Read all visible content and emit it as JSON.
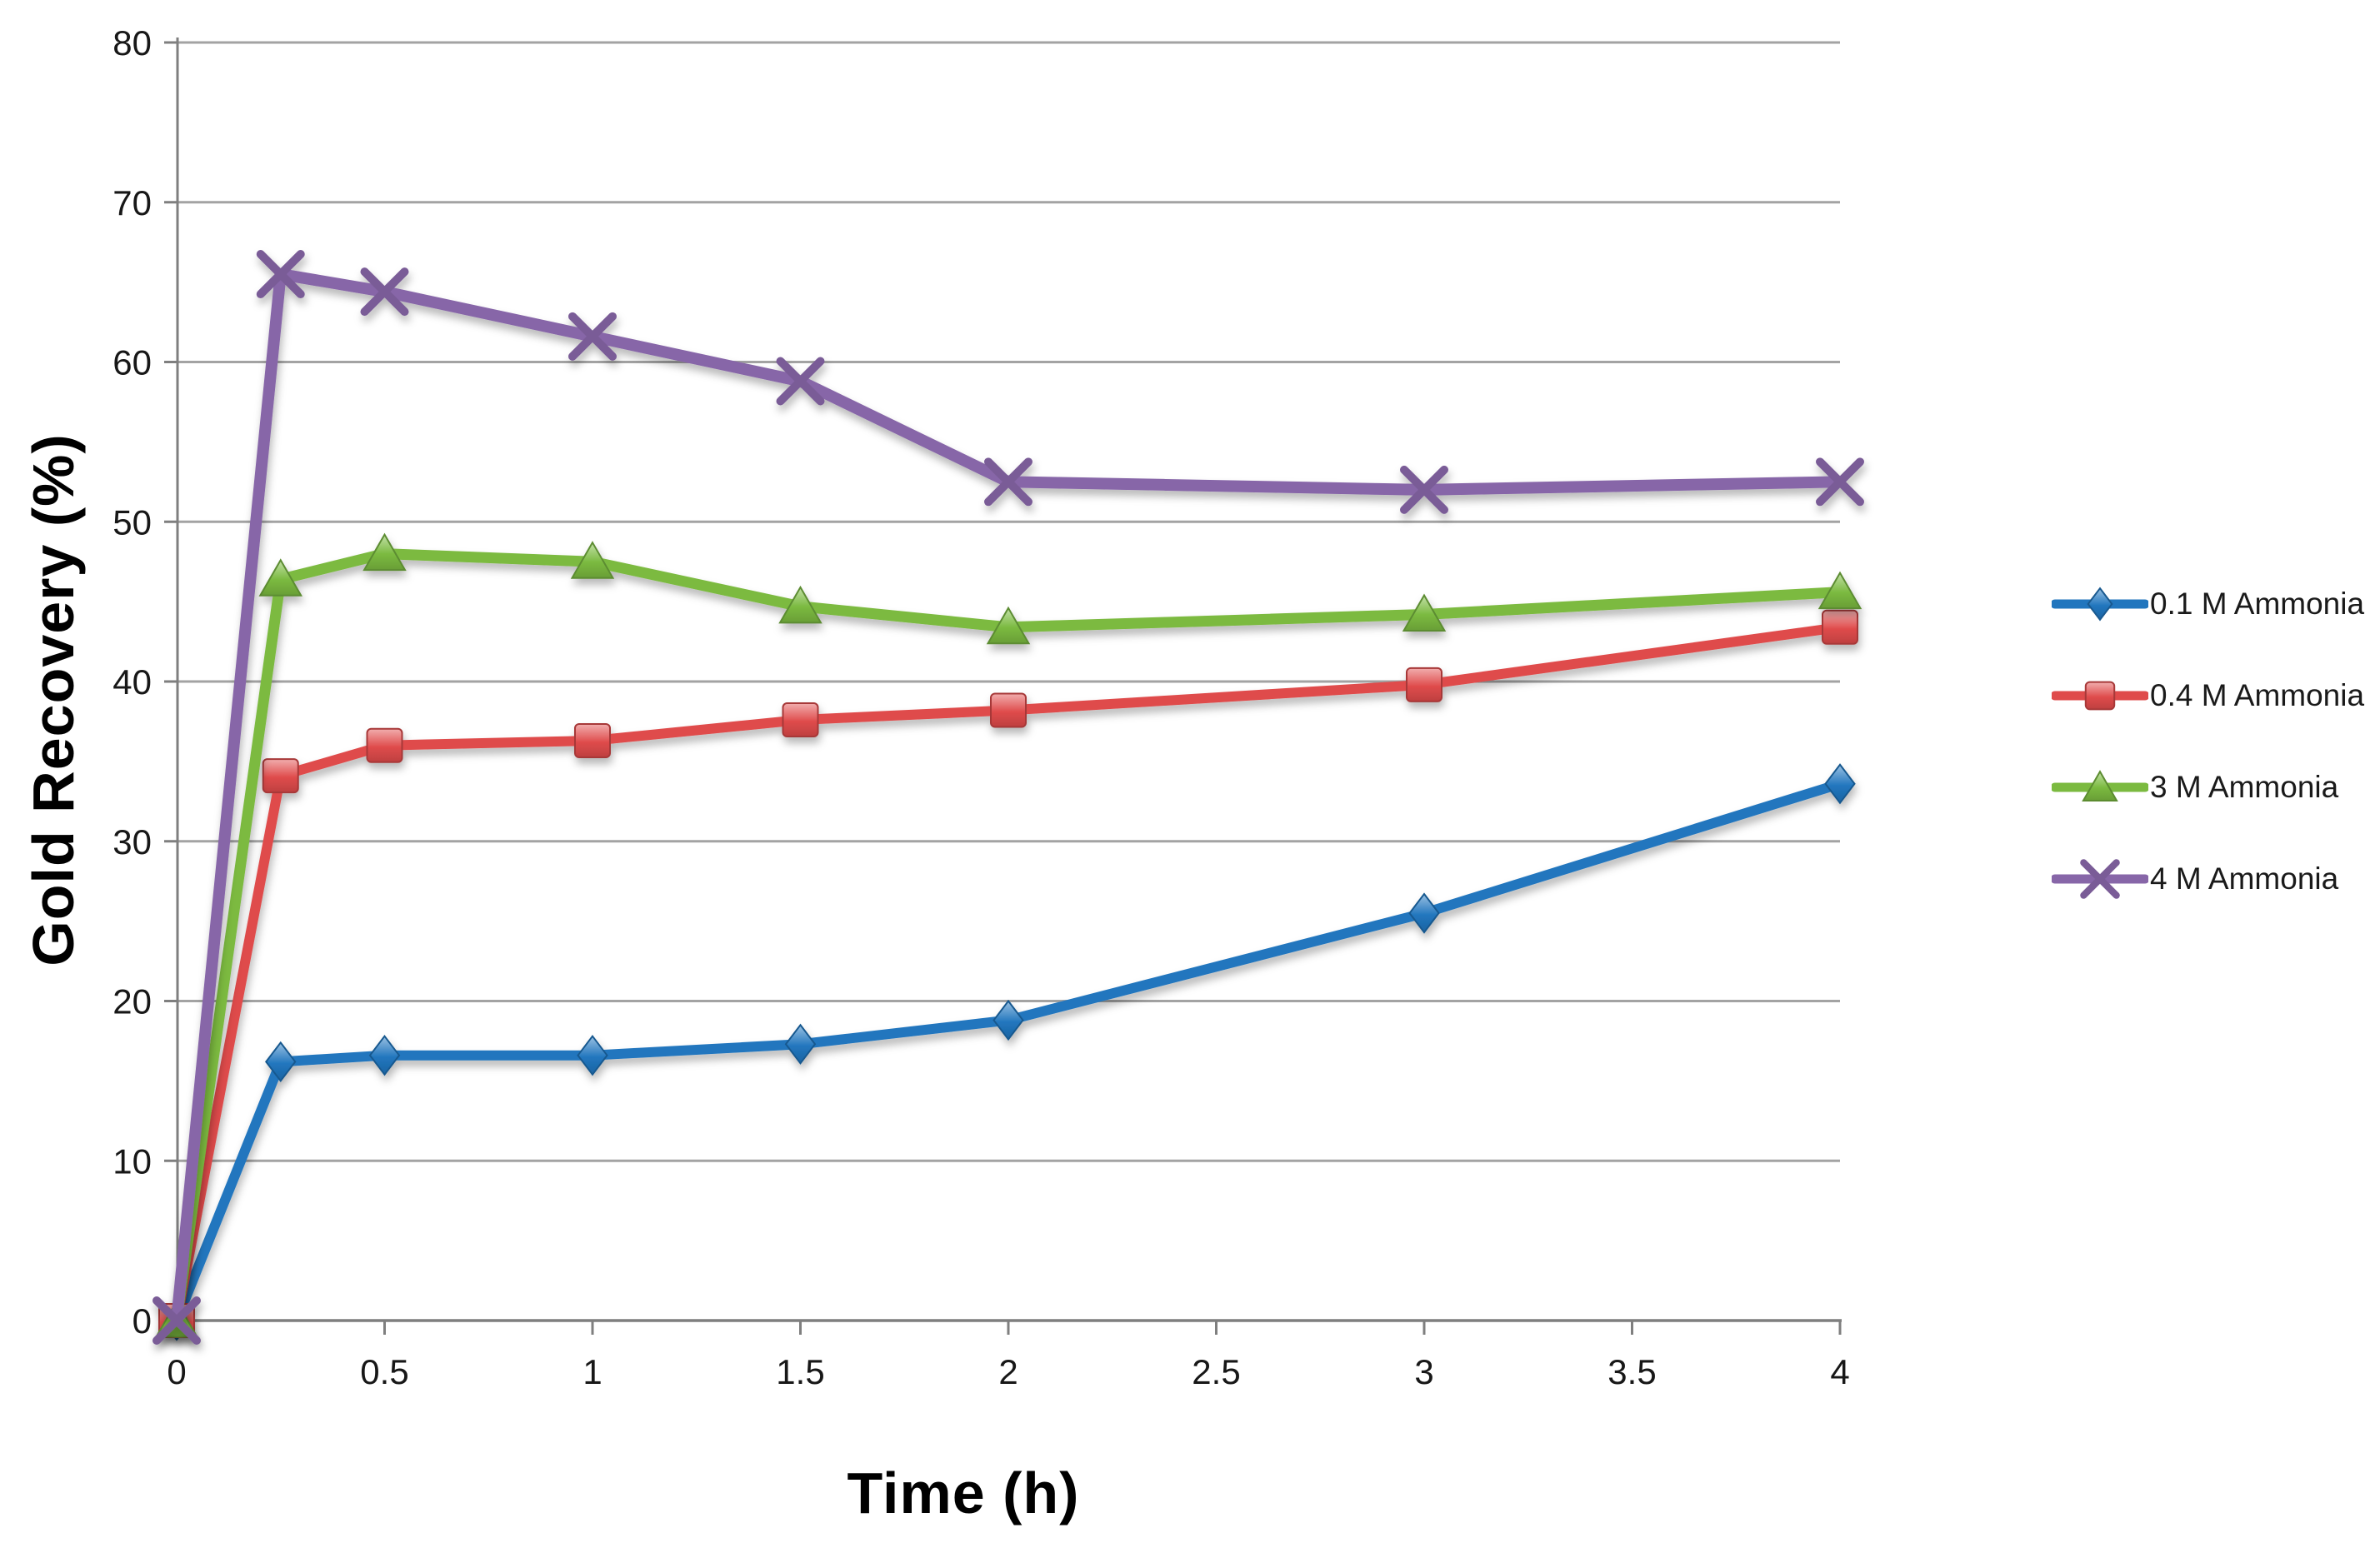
{
  "figure": {
    "background": "#ffffff",
    "gridline_color": "#a3a3a3",
    "axis_color": "#7f7f7f",
    "tick_text_color": "#171717"
  },
  "chart_data": {
    "type": "line",
    "title": "",
    "xlabel": "Time (h)",
    "ylabel": "Gold Recovery (%)",
    "x": [
      0,
      0.25,
      0.5,
      1,
      1.5,
      2,
      3,
      4
    ],
    "series": [
      {
        "name": "0.1 M Ammonia",
        "marker": "diamond",
        "color": "#2176be",
        "line_width": 12,
        "values": [
          0,
          16.2,
          16.6,
          16.6,
          17.3,
          18.8,
          25.5,
          33.6
        ]
      },
      {
        "name": "0.4 M Ammonia",
        "marker": "square",
        "color": "#df4b4b",
        "line_width": 12,
        "values": [
          0,
          34.1,
          36.0,
          36.3,
          37.6,
          38.2,
          39.8,
          43.4
        ]
      },
      {
        "name": "3 M Ammonia",
        "marker": "triangle",
        "color": "#7bba40",
        "line_width": 13,
        "values": [
          0,
          46.4,
          48.0,
          47.5,
          44.7,
          43.4,
          44.2,
          45.6
        ]
      },
      {
        "name": "4 M Ammonia",
        "marker": "x",
        "color": "#8766a8",
        "line_width": 14,
        "values": [
          0,
          65.5,
          64.4,
          61.6,
          58.8,
          52.5,
          52.0,
          52.5
        ]
      }
    ],
    "xticks": [
      "0",
      "0.5",
      "1",
      "1.5",
      "2",
      "2.5",
      "3",
      "3.5",
      "4"
    ],
    "xtick_values": [
      0,
      0.5,
      1,
      1.5,
      2,
      2.5,
      3,
      3.5,
      4
    ],
    "yticks": [
      "0",
      "10",
      "20",
      "30",
      "40",
      "50",
      "60",
      "70",
      "80"
    ],
    "ytick_values": [
      0,
      10,
      20,
      30,
      40,
      50,
      60,
      70,
      80
    ],
    "xlim": [
      0,
      4
    ],
    "ylim": [
      0,
      80
    ],
    "grid": "horizontal-only",
    "legend_position": "right-middle"
  }
}
